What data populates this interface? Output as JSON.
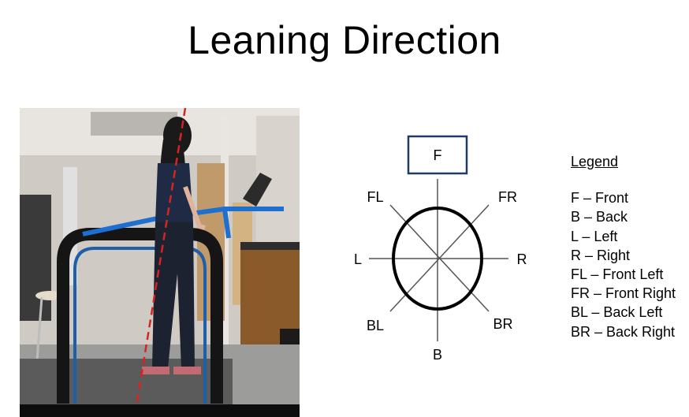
{
  "slide": {
    "title": "Leaning Direction"
  },
  "photo": {
    "description_icon": "treadmill-photo"
  },
  "diagram": {
    "labels": {
      "front": "F",
      "front_left": "FL",
      "front_right": "FR",
      "left": "L",
      "right": "R",
      "back_left": "BL",
      "back_right": "BR",
      "back": "B"
    },
    "front_box_color": "#1f3b66",
    "line_color": "#555555"
  },
  "legend": {
    "title": "Legend",
    "items": [
      "F – Front",
      "B – Back",
      "L – Left",
      "R – Right",
      "FL – Front Left",
      "FR – Front Right",
      "BL – Back Left",
      "BR – Back Right"
    ]
  }
}
